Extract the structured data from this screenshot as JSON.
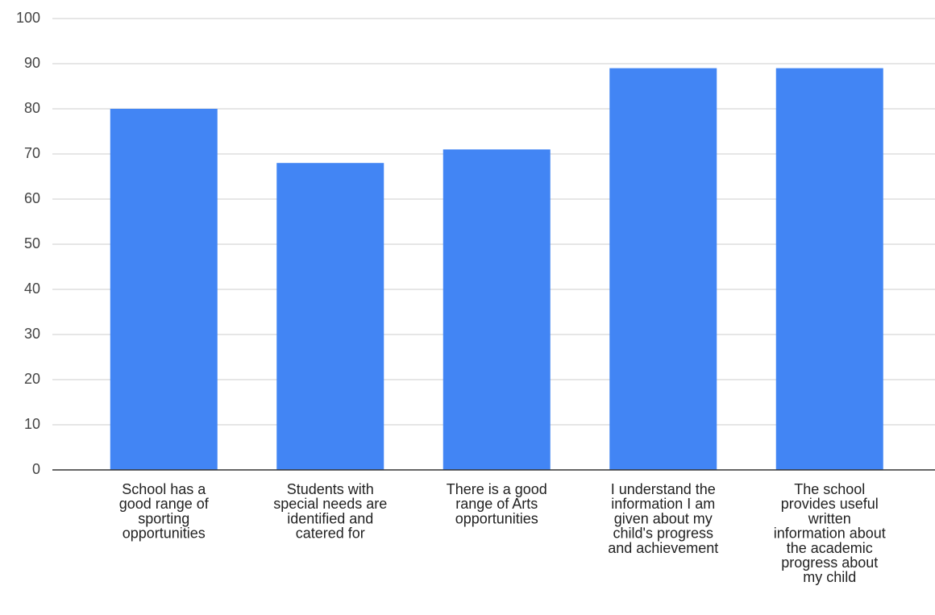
{
  "chart_data": {
    "type": "bar",
    "categories": [
      "School has a good range of sporting opportunities",
      "Students with special needs are identified and catered for",
      "There is a good range of Arts opportunities",
      "I understand the information I am given about my child's progress and achievement",
      "The school provides useful written information about the academic progress about my child"
    ],
    "category_lines": [
      [
        "School has a",
        "good range of",
        "sporting",
        "opportunities"
      ],
      [
        "Students with",
        "special needs are",
        "identified and",
        "catered for"
      ],
      [
        "There is a good",
        "range of Arts",
        "opportunities"
      ],
      [
        "I understand the",
        "information I am",
        "given about my",
        "child's progress",
        "and achievement"
      ],
      [
        "The school",
        "provides useful",
        "written",
        "information about",
        "the academic",
        "progress about",
        "my child"
      ]
    ],
    "values": [
      80,
      68,
      71,
      89,
      89
    ],
    "ylim": [
      0,
      100
    ],
    "yticks": [
      0,
      10,
      20,
      30,
      40,
      50,
      60,
      70,
      80,
      90,
      100
    ],
    "grid": true,
    "legend": "none",
    "bar_color": "#4285f4"
  }
}
